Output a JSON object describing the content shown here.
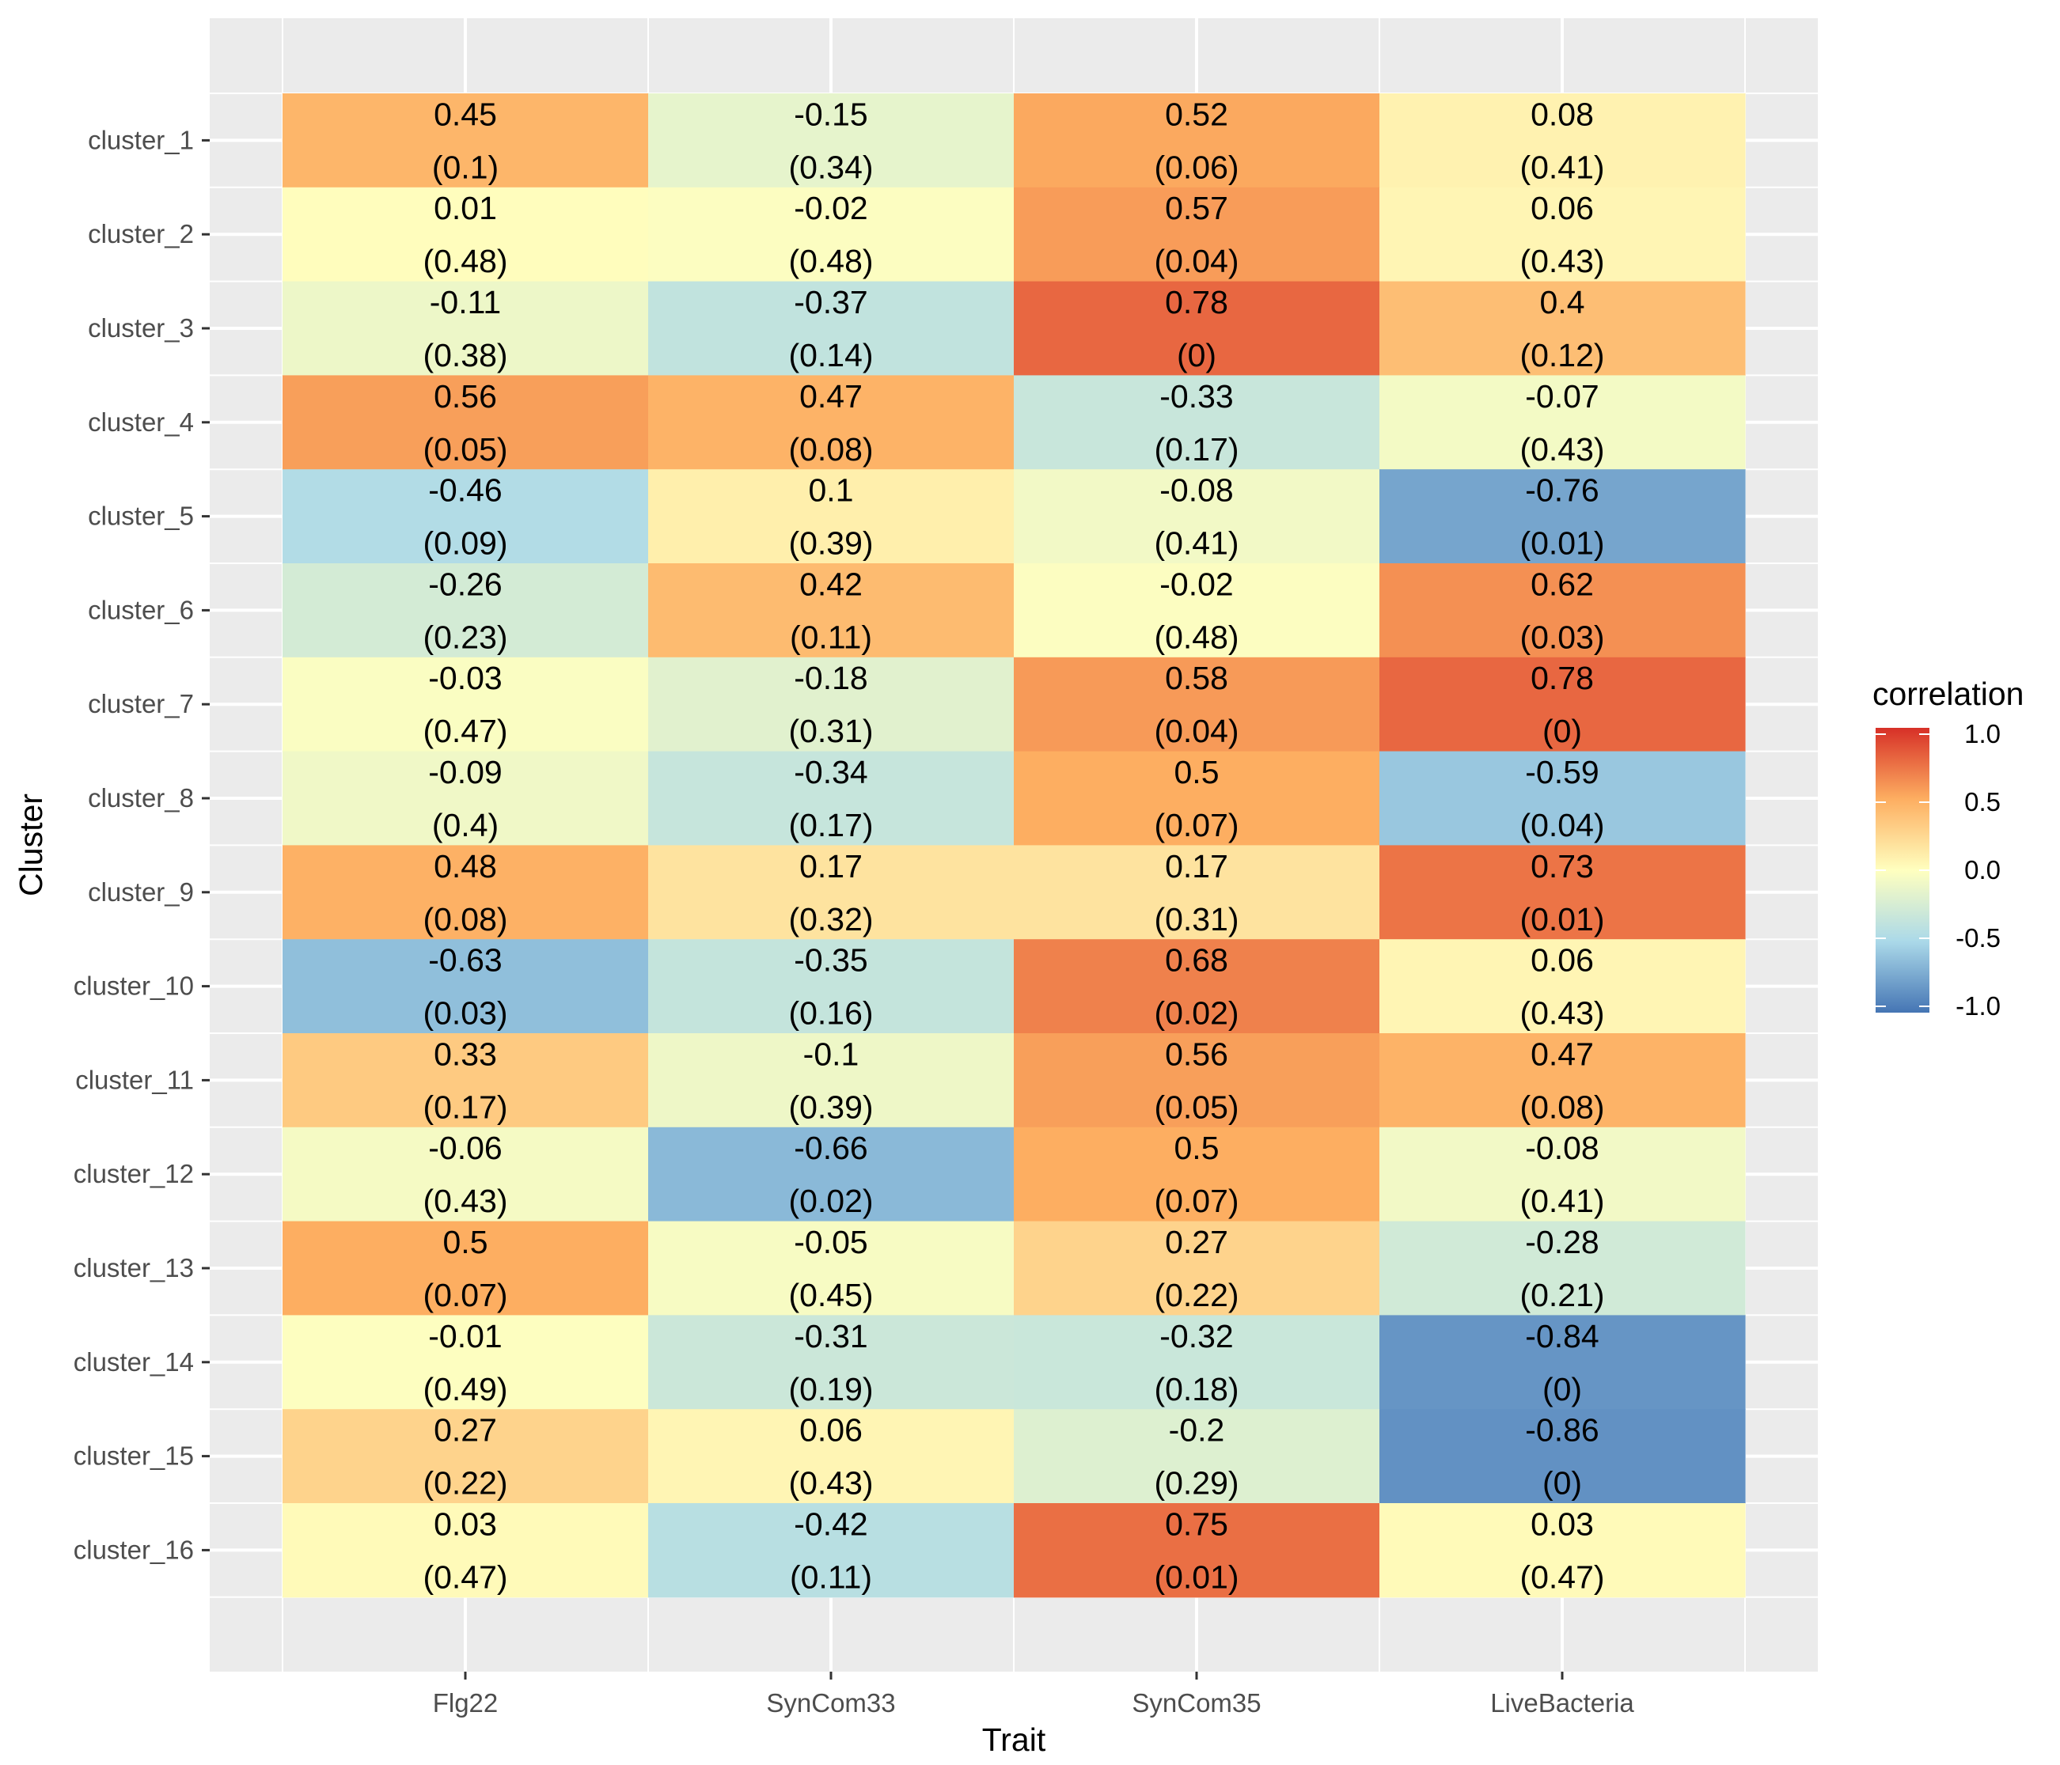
{
  "chart_data": {
    "type": "heatmap",
    "xlabel": "Trait",
    "ylabel": "Cluster",
    "x_categories": [
      "Flg22",
      "SynCom33",
      "SynCom35",
      "LiveBacteria"
    ],
    "y_categories": [
      "cluster_1",
      "cluster_2",
      "cluster_3",
      "cluster_4",
      "cluster_5",
      "cluster_6",
      "cluster_7",
      "cluster_8",
      "cluster_9",
      "cluster_10",
      "cluster_11",
      "cluster_12",
      "cluster_13",
      "cluster_14",
      "cluster_15",
      "cluster_16"
    ],
    "correlation": [
      [
        0.45,
        -0.15,
        0.52,
        0.08
      ],
      [
        0.01,
        -0.02,
        0.57,
        0.06
      ],
      [
        -0.11,
        -0.37,
        0.78,
        0.4
      ],
      [
        0.56,
        0.47,
        -0.33,
        -0.07
      ],
      [
        -0.46,
        0.1,
        -0.08,
        -0.76
      ],
      [
        -0.26,
        0.42,
        -0.02,
        0.62
      ],
      [
        -0.03,
        -0.18,
        0.58,
        0.78
      ],
      [
        -0.09,
        -0.34,
        0.5,
        -0.59
      ],
      [
        0.48,
        0.17,
        0.17,
        0.73
      ],
      [
        -0.63,
        -0.35,
        0.68,
        0.06
      ],
      [
        0.33,
        -0.1,
        0.56,
        0.47
      ],
      [
        -0.06,
        -0.66,
        0.5,
        -0.08
      ],
      [
        0.5,
        -0.05,
        0.27,
        -0.28
      ],
      [
        -0.01,
        -0.31,
        -0.32,
        -0.84
      ],
      [
        0.27,
        0.06,
        -0.2,
        -0.86
      ],
      [
        0.03,
        -0.42,
        0.75,
        0.03
      ]
    ],
    "labels_value": [
      [
        "0.45",
        "-0.15",
        "0.52",
        "0.08"
      ],
      [
        "0.01",
        "-0.02",
        "0.57",
        "0.06"
      ],
      [
        "-0.11",
        "-0.37",
        "0.78",
        "0.4"
      ],
      [
        "0.56",
        "0.47",
        "-0.33",
        "-0.07"
      ],
      [
        "-0.46",
        "0.1",
        "-0.08",
        "-0.76"
      ],
      [
        "-0.26",
        "0.42",
        "-0.02",
        "0.62"
      ],
      [
        "-0.03",
        "-0.18",
        "0.58",
        "0.78"
      ],
      [
        "-0.09",
        "-0.34",
        "0.5",
        "-0.59"
      ],
      [
        "0.48",
        "0.17",
        "0.17",
        "0.73"
      ],
      [
        "-0.63",
        "-0.35",
        "0.68",
        "0.06"
      ],
      [
        "0.33",
        "-0.1",
        "0.56",
        "0.47"
      ],
      [
        "-0.06",
        "-0.66",
        "0.5",
        "-0.08"
      ],
      [
        "0.5",
        "-0.05",
        "0.27",
        "-0.28"
      ],
      [
        "-0.01",
        "-0.31",
        "-0.32",
        "-0.84"
      ],
      [
        "0.27",
        "0.06",
        "-0.2",
        "-0.86"
      ],
      [
        "0.03",
        "-0.42",
        "0.75",
        "0.03"
      ]
    ],
    "labels_pvalue": [
      [
        "(0.1)",
        "(0.34)",
        "(0.06)",
        "(0.41)"
      ],
      [
        "(0.48)",
        "(0.48)",
        "(0.04)",
        "(0.43)"
      ],
      [
        "(0.38)",
        "(0.14)",
        "(0)",
        "(0.12)"
      ],
      [
        "(0.05)",
        "(0.08)",
        "(0.17)",
        "(0.43)"
      ],
      [
        "(0.09)",
        "(0.39)",
        "(0.41)",
        "(0.01)"
      ],
      [
        "(0.23)",
        "(0.11)",
        "(0.48)",
        "(0.03)"
      ],
      [
        "(0.47)",
        "(0.31)",
        "(0.04)",
        "(0)"
      ],
      [
        "(0.4)",
        "(0.17)",
        "(0.07)",
        "(0.04)"
      ],
      [
        "(0.08)",
        "(0.32)",
        "(0.31)",
        "(0.01)"
      ],
      [
        "(0.03)",
        "(0.16)",
        "(0.02)",
        "(0.43)"
      ],
      [
        "(0.17)",
        "(0.39)",
        "(0.05)",
        "(0.08)"
      ],
      [
        "(0.43)",
        "(0.02)",
        "(0.07)",
        "(0.41)"
      ],
      [
        "(0.07)",
        "(0.45)",
        "(0.22)",
        "(0.21)"
      ],
      [
        "(0.49)",
        "(0.19)",
        "(0.18)",
        "(0)"
      ],
      [
        "(0.22)",
        "(0.43)",
        "(0.29)",
        "(0)"
      ],
      [
        "(0.47)",
        "(0.11)",
        "(0.01)",
        "(0.47)"
      ]
    ],
    "legend": {
      "title": "correlation",
      "breaks": [
        1.0,
        0.5,
        0.0,
        -0.5,
        -1.0
      ],
      "break_labels": [
        "1.0",
        "0.5",
        "0.0",
        "-0.5",
        "-1.0"
      ],
      "placement": "right"
    },
    "color_scale": {
      "domain": [
        -1,
        -0.5,
        0,
        0.5,
        1
      ],
      "colors": [
        "#4575b4",
        "#abd9e9",
        "#ffffbf",
        "#fdae61",
        "#d73027"
      ]
    },
    "panel_background": "#ebebeb",
    "grid": true
  }
}
